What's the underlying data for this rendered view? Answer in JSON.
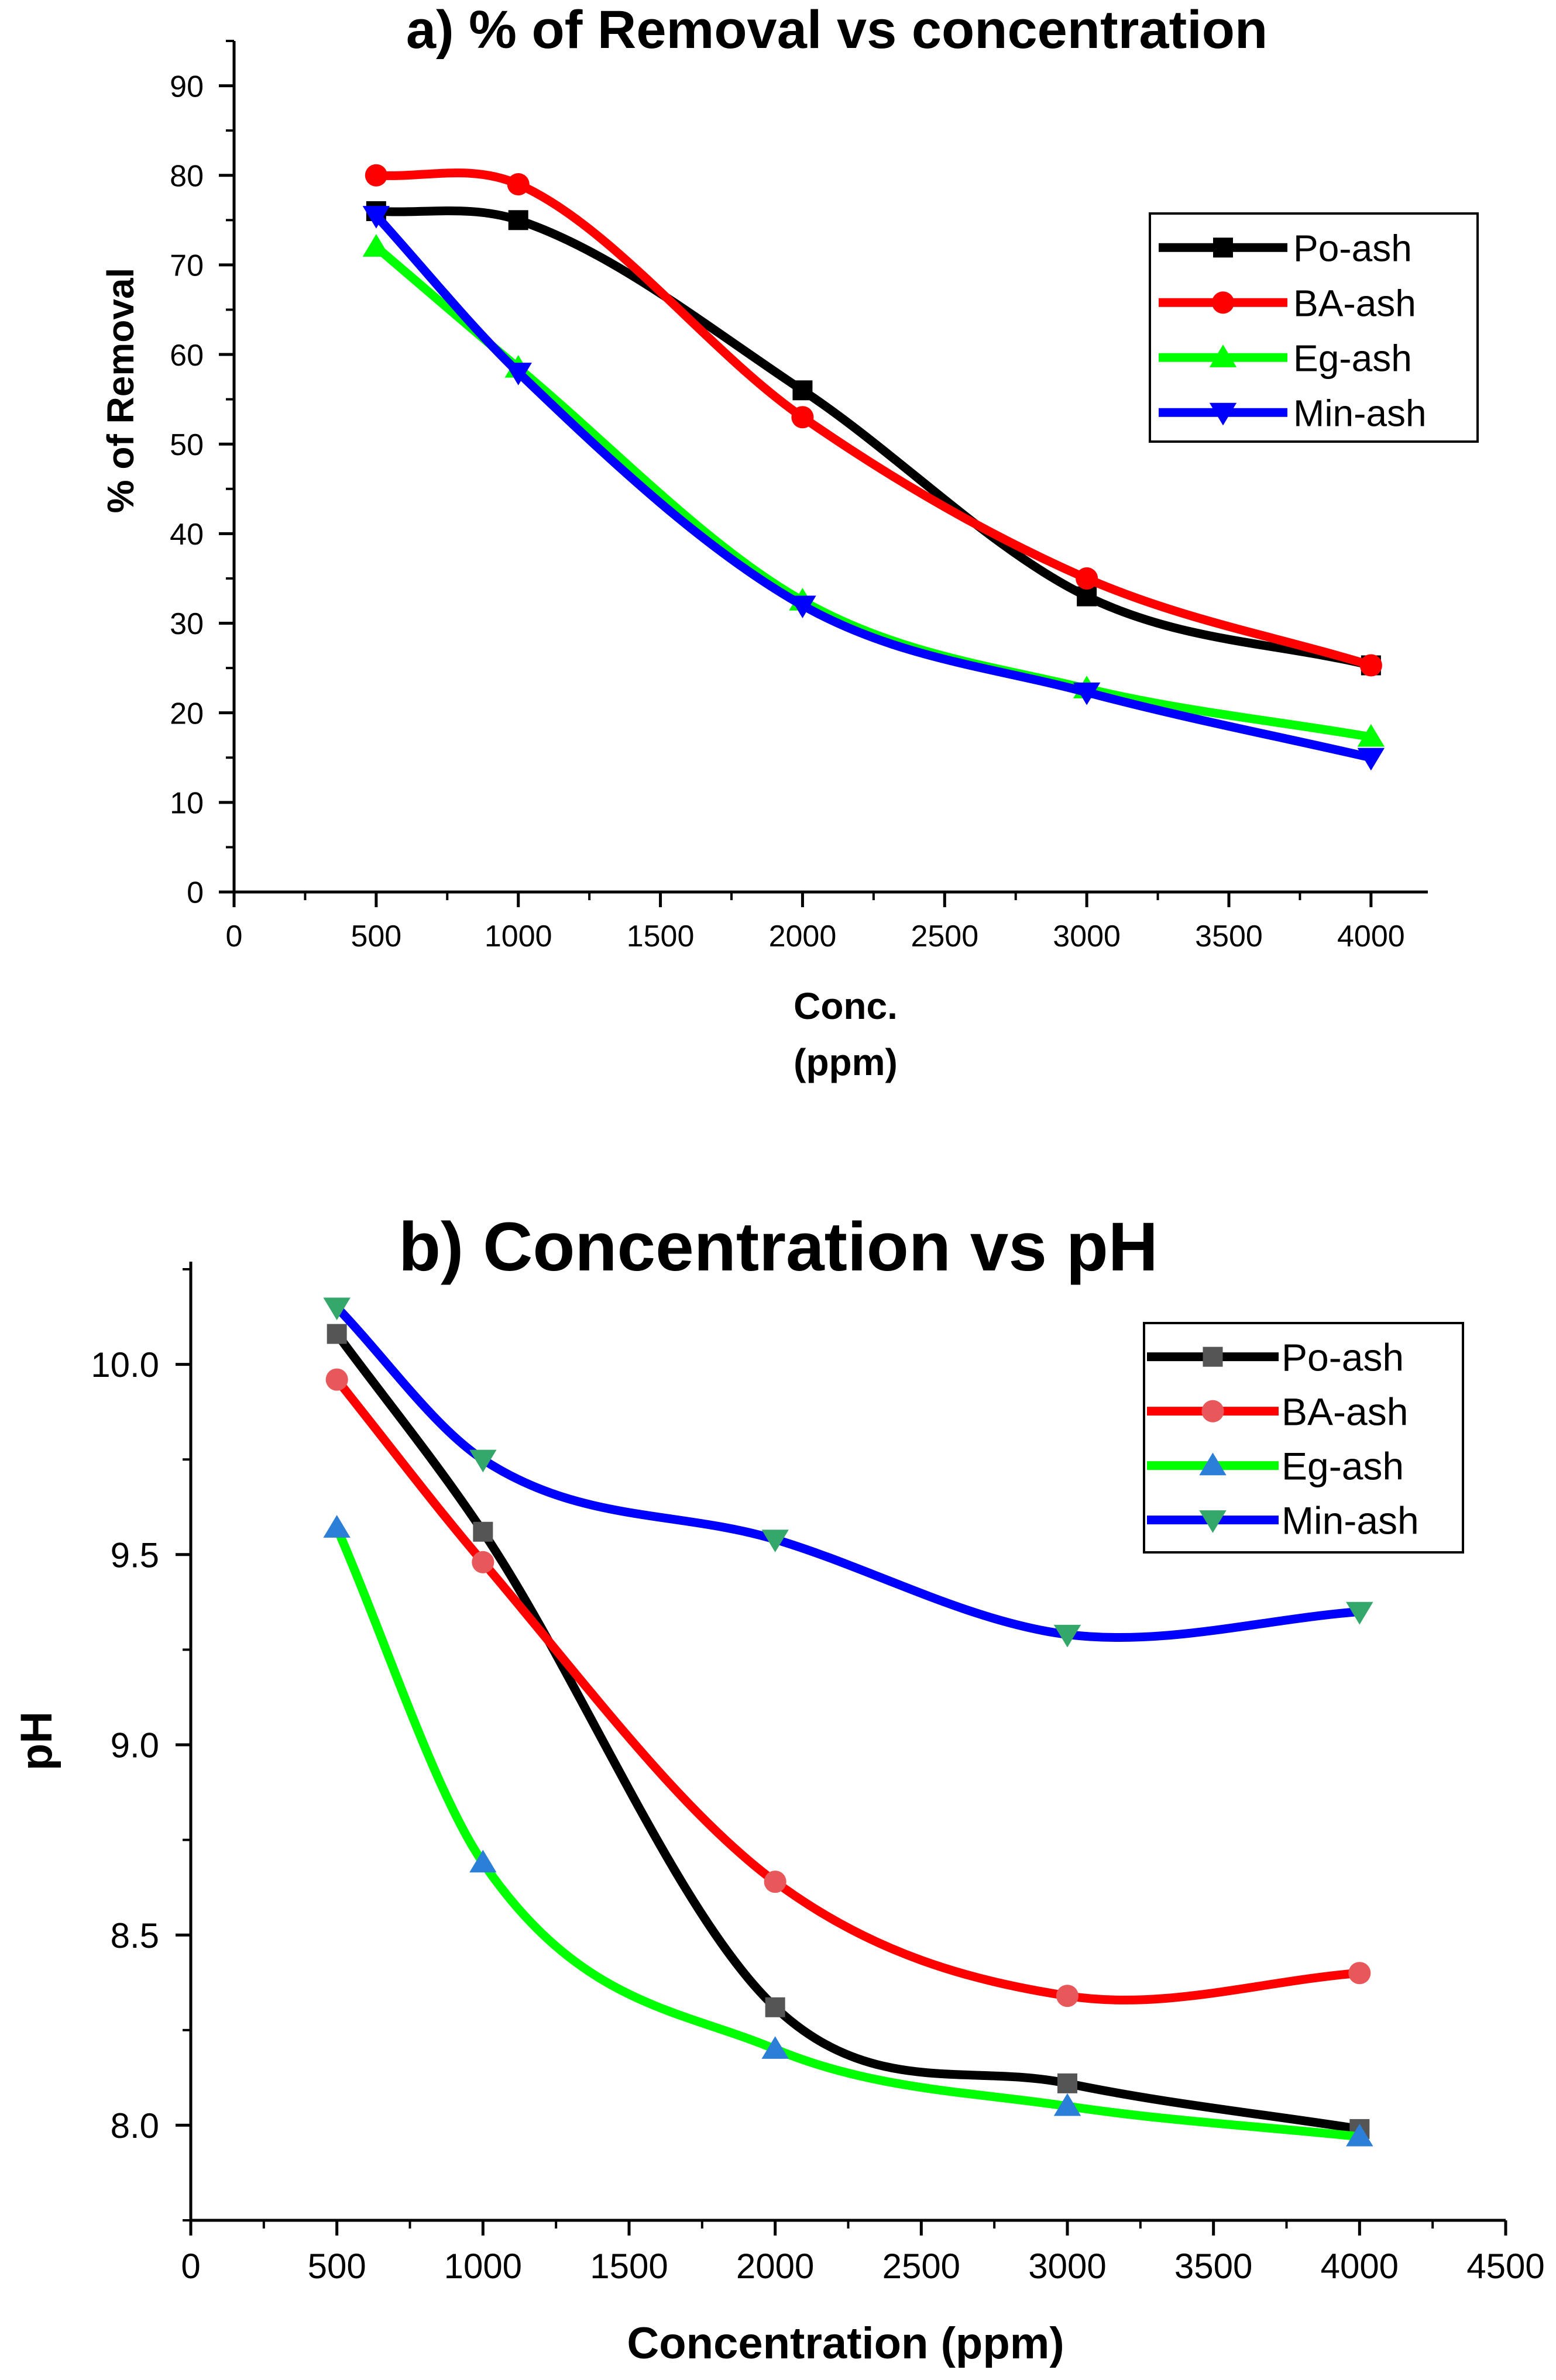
{
  "chart_data": [
    {
      "type": "line",
      "title": "a) % of Removal vs concentration",
      "xlabel": "Conc.",
      "xlabel_line2": "(ppm)",
      "ylabel": "% of Removal",
      "xlim": [
        0,
        4200
      ],
      "ylim": [
        0,
        95
      ],
      "xticks": [
        0,
        500,
        1000,
        1500,
        2000,
        2500,
        3000,
        3500,
        4000
      ],
      "yticks": [
        0,
        10,
        20,
        30,
        40,
        50,
        60,
        70,
        80,
        90
      ],
      "grid": false,
      "legend_position": "top-right",
      "x": [
        500,
        1000,
        2000,
        3000,
        4000
      ],
      "series": [
        {
          "name": "Po-ash",
          "color": "#000000",
          "marker": "square",
          "values": [
            76,
            75,
            56,
            33,
            25.3
          ]
        },
        {
          "name": "BA-ash",
          "color": "#ff0000",
          "marker": "circle",
          "values": [
            80,
            79,
            53,
            35,
            25.3
          ]
        },
        {
          "name": "Eg-ash",
          "color": "#00ff00",
          "marker": "triangle-up",
          "values": [
            72,
            58.5,
            32.5,
            22.7,
            17.3
          ]
        },
        {
          "name": "Min-ash",
          "color": "#0000ff",
          "marker": "triangle-down",
          "values": [
            75.5,
            58,
            32,
            22.3,
            15
          ]
        }
      ]
    },
    {
      "type": "line",
      "title": "b) Concentration vs pH",
      "xlabel": "Concentration (ppm)",
      "ylabel": "pH",
      "xlim": [
        0,
        4500
      ],
      "ylim": [
        7.75,
        10.27
      ],
      "xticks": [
        0,
        500,
        1000,
        1500,
        2000,
        2500,
        3000,
        3500,
        4000,
        4500
      ],
      "yticks": [
        8.0,
        8.5,
        9.0,
        9.5,
        10.0
      ],
      "ytick_labels": [
        "8.0",
        "8.5",
        "9.0",
        "9.5",
        "10.0"
      ],
      "grid": false,
      "legend_position": "top-right",
      "x": [
        500,
        1000,
        2000,
        3000,
        4000
      ],
      "series": [
        {
          "name": "Po-ash",
          "color": "#000000",
          "marker_color": "#555555",
          "marker": "square",
          "values": [
            10.08,
            9.56,
            8.31,
            8.11,
            7.99
          ]
        },
        {
          "name": "BA-ash",
          "color": "#ff0000",
          "marker_color": "#e8585a",
          "marker": "circle",
          "values": [
            9.96,
            9.48,
            8.64,
            8.34,
            8.4
          ]
        },
        {
          "name": "Eg-ash",
          "color": "#00ff00",
          "marker_color": "#2c7fd6",
          "marker": "triangle-up",
          "values": [
            9.57,
            8.69,
            8.2,
            8.05,
            7.97
          ]
        },
        {
          "name": "Min-ash",
          "color": "#0000ff",
          "marker_color": "#34a86b",
          "marker": "triangle-down",
          "values": [
            10.15,
            9.75,
            9.54,
            9.29,
            9.35
          ]
        }
      ]
    }
  ]
}
